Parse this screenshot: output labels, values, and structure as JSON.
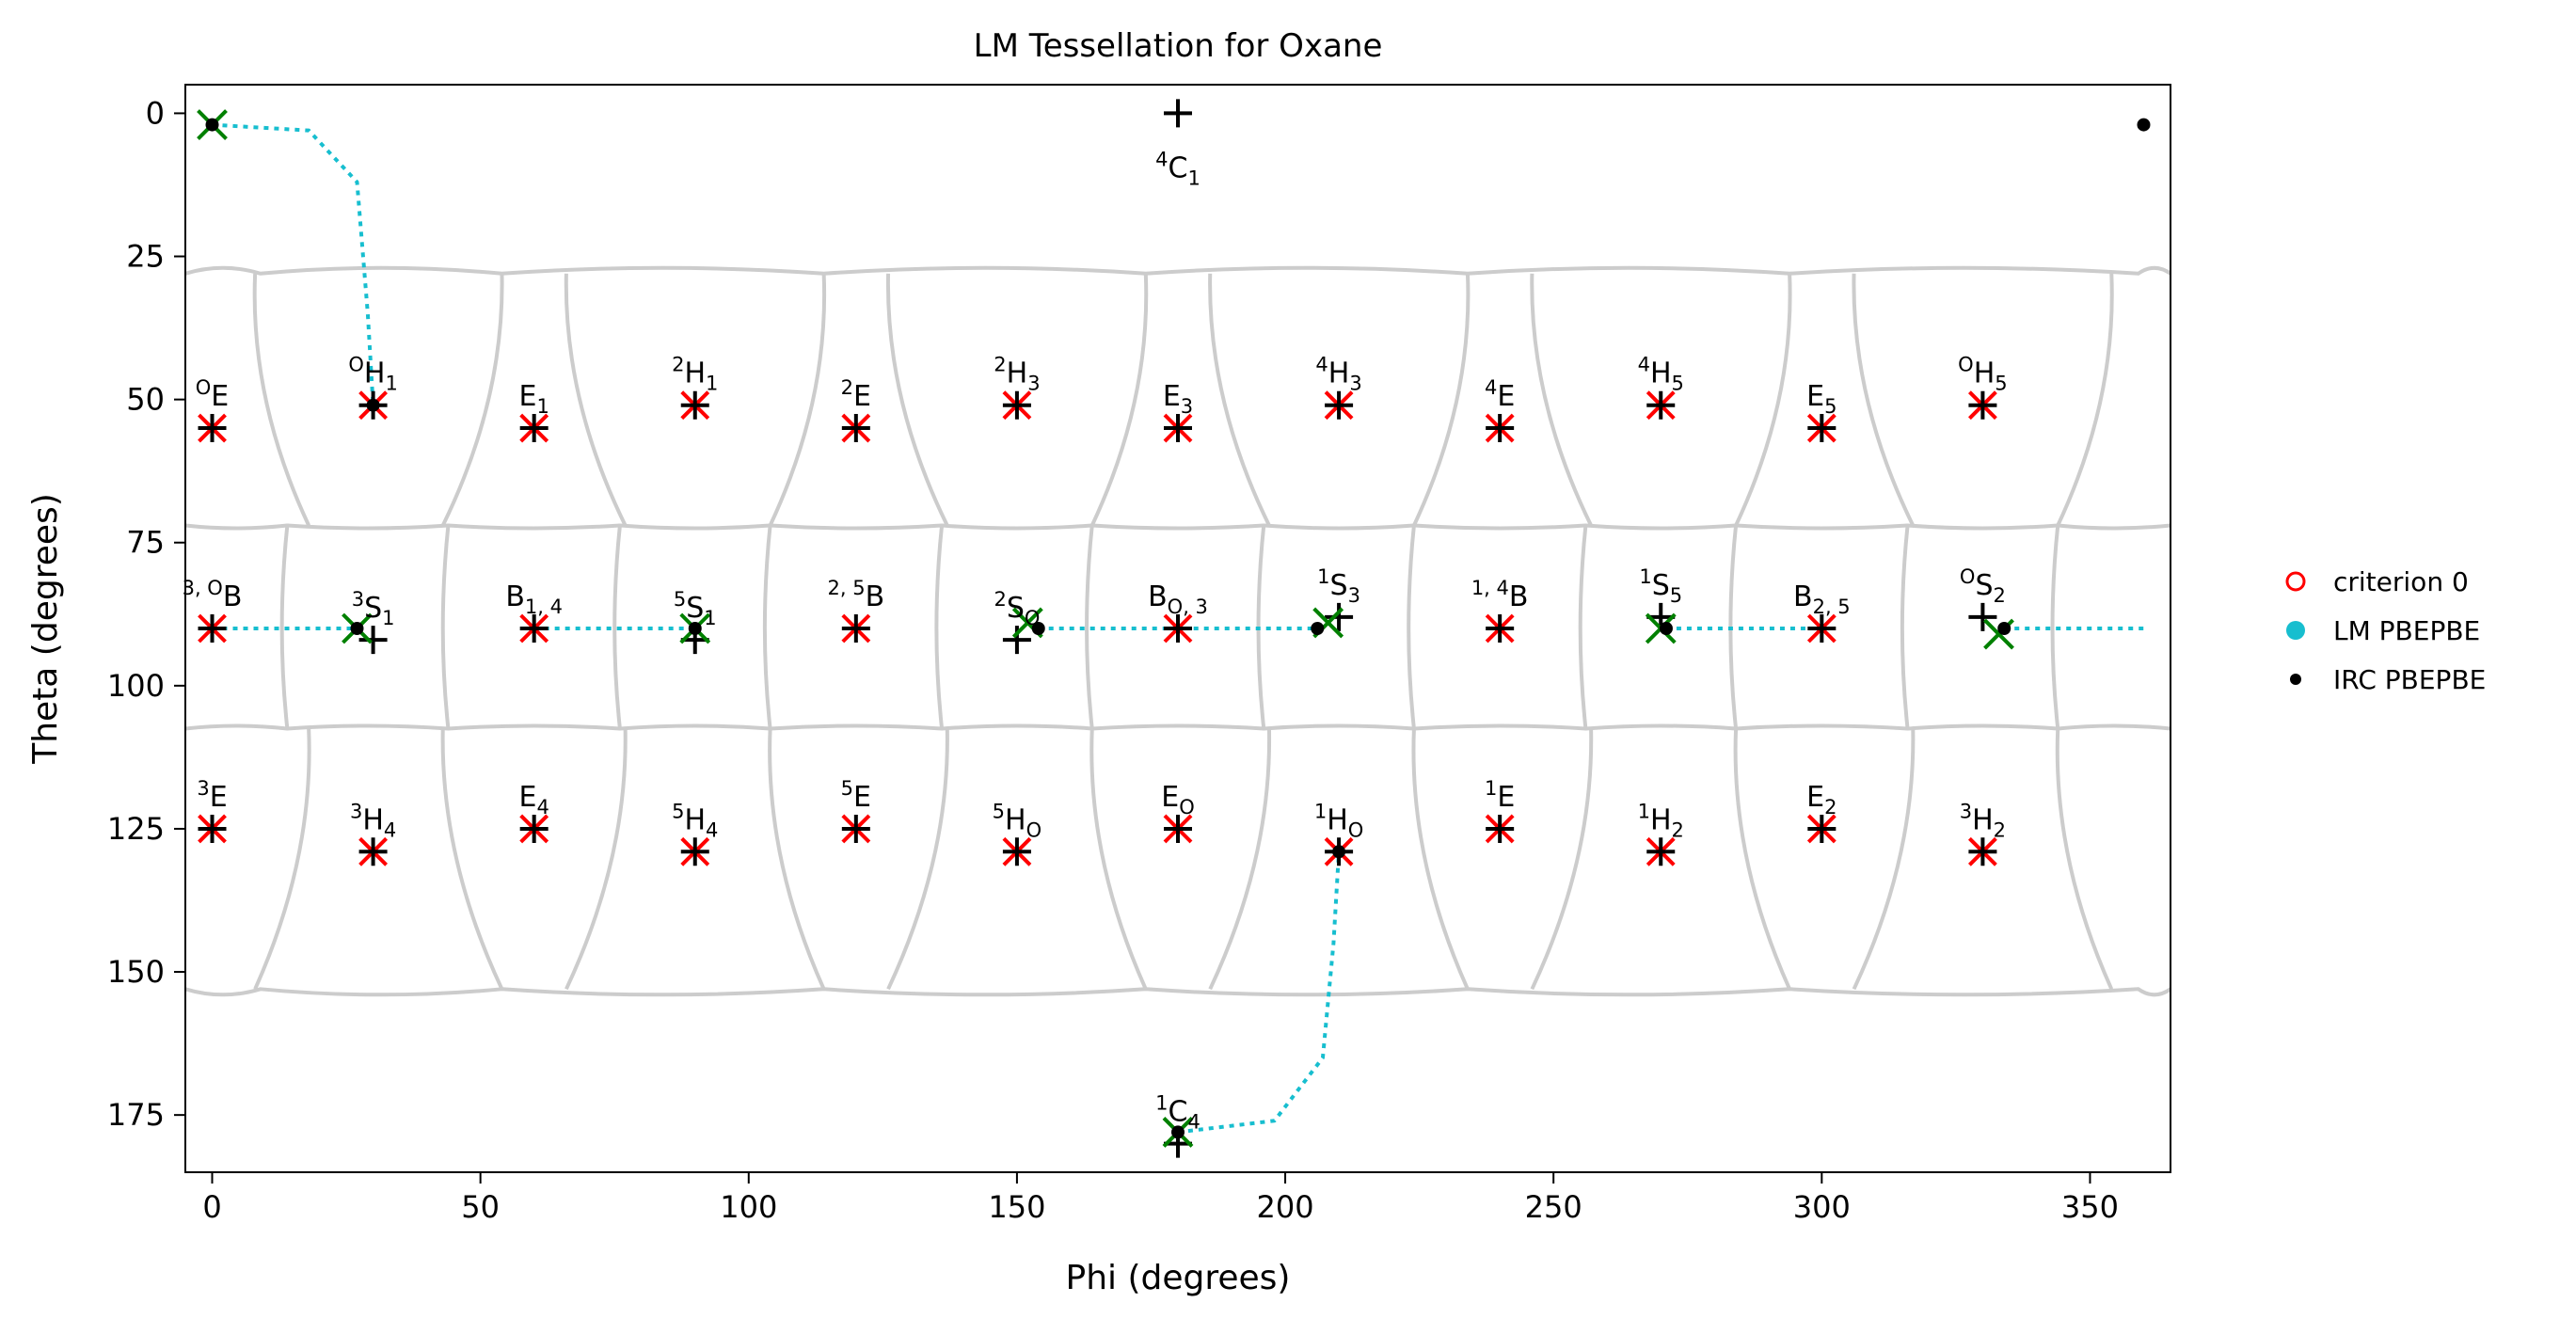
{
  "chart_data": {
    "type": "scatter",
    "title": "LM Tessellation for Oxane",
    "xlabel": "Phi (degrees)",
    "ylabel": "Theta (degrees)",
    "xlim": [
      -5,
      365
    ],
    "ylim": [
      185,
      -5
    ],
    "x_ticks": [
      0,
      50,
      100,
      150,
      200,
      250,
      300,
      350
    ],
    "y_ticks": [
      0,
      25,
      50,
      75,
      100,
      125,
      150,
      175
    ],
    "legend_position": "outside-right",
    "legend": [
      {
        "label": "criterion 0",
        "marker": "open-circle",
        "color": "#ff0000"
      },
      {
        "label": "LM PBEPBE",
        "marker": "filled-circle",
        "color": "#17becf"
      },
      {
        "label": "IRC PBEPBE",
        "marker": "dot",
        "color": "#000000"
      }
    ],
    "colors": {
      "tessellation": "#cccccc",
      "criterion": "#ff0000",
      "lm": "#17becf",
      "irc": "#000000",
      "green_x": "#008000"
    },
    "canonical_points": [
      {
        "label": "4C1",
        "phi": 180,
        "theta": 0
      },
      {
        "label": "1C4",
        "phi": 180,
        "theta": 180
      },
      {
        "label": "OE",
        "phi": 0,
        "theta": 55
      },
      {
        "label": "OH1",
        "phi": 30,
        "theta": 51
      },
      {
        "label": "E1",
        "phi": 60,
        "theta": 55
      },
      {
        "label": "2H1",
        "phi": 90,
        "theta": 51
      },
      {
        "label": "2E",
        "phi": 120,
        "theta": 55
      },
      {
        "label": "2H3",
        "phi": 150,
        "theta": 51
      },
      {
        "label": "E3",
        "phi": 180,
        "theta": 55
      },
      {
        "label": "4H3",
        "phi": 210,
        "theta": 51
      },
      {
        "label": "4E",
        "phi": 240,
        "theta": 55
      },
      {
        "label": "4H5",
        "phi": 270,
        "theta": 51
      },
      {
        "label": "E5",
        "phi": 300,
        "theta": 55
      },
      {
        "label": "OH5",
        "phi": 330,
        "theta": 51
      },
      {
        "label": "3,OB",
        "phi": 0,
        "theta": 90
      },
      {
        "label": "3S1",
        "phi": 30,
        "theta": 92
      },
      {
        "label": "B1,4",
        "phi": 60,
        "theta": 90
      },
      {
        "label": "5S1",
        "phi": 90,
        "theta": 92
      },
      {
        "label": "2,5B",
        "phi": 120,
        "theta": 90
      },
      {
        "label": "2SO",
        "phi": 150,
        "theta": 92
      },
      {
        "label": "BO,3",
        "phi": 180,
        "theta": 90
      },
      {
        "label": "1S3",
        "phi": 210,
        "theta": 88
      },
      {
        "label": "1,4B",
        "phi": 240,
        "theta": 90
      },
      {
        "label": "1S5",
        "phi": 270,
        "theta": 88
      },
      {
        "label": "B2,5",
        "phi": 300,
        "theta": 90
      },
      {
        "label": "OS2",
        "phi": 330,
        "theta": 88
      },
      {
        "label": "3E",
        "phi": 0,
        "theta": 125
      },
      {
        "label": "3H4",
        "phi": 30,
        "theta": 129
      },
      {
        "label": "E4",
        "phi": 60,
        "theta": 125
      },
      {
        "label": "5H4",
        "phi": 90,
        "theta": 129
      },
      {
        "label": "5E",
        "phi": 120,
        "theta": 125
      },
      {
        "label": "5HO",
        "phi": 150,
        "theta": 129
      },
      {
        "label": "EO",
        "phi": 180,
        "theta": 125
      },
      {
        "label": "1HO",
        "phi": 210,
        "theta": 129
      },
      {
        "label": "1E",
        "phi": 240,
        "theta": 125
      },
      {
        "label": "1H2",
        "phi": 270,
        "theta": 129
      },
      {
        "label": "E2",
        "phi": 300,
        "theta": 125
      },
      {
        "label": "3H2",
        "phi": 330,
        "theta": 129
      }
    ],
    "criterion_points": [
      {
        "phi": 0,
        "theta": 55
      },
      {
        "phi": 30,
        "theta": 51
      },
      {
        "phi": 60,
        "theta": 55
      },
      {
        "phi": 90,
        "theta": 51
      },
      {
        "phi": 120,
        "theta": 55
      },
      {
        "phi": 150,
        "theta": 51
      },
      {
        "phi": 180,
        "theta": 55
      },
      {
        "phi": 210,
        "theta": 51
      },
      {
        "phi": 240,
        "theta": 55
      },
      {
        "phi": 270,
        "theta": 51
      },
      {
        "phi": 300,
        "theta": 55
      },
      {
        "phi": 330,
        "theta": 51
      },
      {
        "phi": 0,
        "theta": 90
      },
      {
        "phi": 60,
        "theta": 90
      },
      {
        "phi": 120,
        "theta": 90
      },
      {
        "phi": 180,
        "theta": 90
      },
      {
        "phi": 240,
        "theta": 90
      },
      {
        "phi": 300,
        "theta": 90
      },
      {
        "phi": 0,
        "theta": 125
      },
      {
        "phi": 30,
        "theta": 129
      },
      {
        "phi": 60,
        "theta": 125
      },
      {
        "phi": 90,
        "theta": 129
      },
      {
        "phi": 120,
        "theta": 125
      },
      {
        "phi": 150,
        "theta": 129
      },
      {
        "phi": 180,
        "theta": 125
      },
      {
        "phi": 210,
        "theta": 129
      },
      {
        "phi": 240,
        "theta": 125
      },
      {
        "phi": 270,
        "theta": 129
      },
      {
        "phi": 300,
        "theta": 125
      },
      {
        "phi": 330,
        "theta": 129
      }
    ],
    "green_points": [
      {
        "phi": 0,
        "theta": 2
      },
      {
        "phi": 27,
        "theta": 90
      },
      {
        "phi": 90,
        "theta": 90
      },
      {
        "phi": 152,
        "theta": 89
      },
      {
        "phi": 208,
        "theta": 89
      },
      {
        "phi": 270,
        "theta": 90
      },
      {
        "phi": 333,
        "theta": 91
      },
      {
        "phi": 180,
        "theta": 178
      }
    ],
    "irc_points": [
      {
        "phi": 0,
        "theta": 2
      },
      {
        "phi": 30,
        "theta": 51
      },
      {
        "phi": 27,
        "theta": 90
      },
      {
        "phi": 90,
        "theta": 90
      },
      {
        "phi": 154,
        "theta": 90
      },
      {
        "phi": 206,
        "theta": 90
      },
      {
        "phi": 271,
        "theta": 90
      },
      {
        "phi": 334,
        "theta": 90
      },
      {
        "phi": 210,
        "theta": 129
      },
      {
        "phi": 180,
        "theta": 178
      },
      {
        "phi": 360,
        "theta": 2
      }
    ],
    "irc_paths": [
      [
        [
          0,
          2
        ],
        [
          18,
          3
        ],
        [
          27,
          12
        ],
        [
          29,
          35
        ],
        [
          30,
          51
        ]
      ],
      [
        [
          0,
          90
        ],
        [
          27,
          90
        ]
      ],
      [
        [
          60,
          90
        ],
        [
          90,
          90
        ]
      ],
      [
        [
          154,
          90
        ],
        [
          206,
          90
        ]
      ],
      [
        [
          271,
          90
        ],
        [
          300,
          90
        ]
      ],
      [
        [
          334,
          90
        ],
        [
          360,
          90
        ]
      ],
      [
        [
          180,
          178
        ],
        [
          198,
          176
        ],
        [
          207,
          165
        ],
        [
          209,
          145
        ],
        [
          210,
          129
        ]
      ]
    ]
  }
}
